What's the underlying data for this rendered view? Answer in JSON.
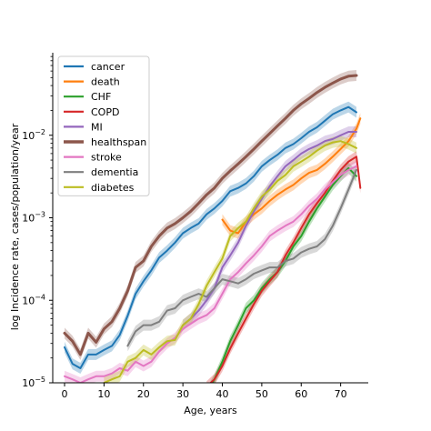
{
  "chart_data": {
    "type": "line",
    "xlabel": "Age, years",
    "ylabel": "log Incidence rate, cases/population/year",
    "xlim": [
      -3,
      77
    ],
    "ylim": [
      1e-05,
      0.1
    ],
    "yscale": "log",
    "x_ticks": [
      0,
      10,
      20,
      30,
      40,
      50,
      60,
      70
    ],
    "y_ticks": [
      {
        "value": 1e-05,
        "label_base": "10",
        "label_exp": "−5"
      },
      {
        "value": 0.0001,
        "label_base": "10",
        "label_exp": "−4"
      },
      {
        "value": 0.001,
        "label_base": "10",
        "label_exp": "−3"
      },
      {
        "value": 0.01,
        "label_base": "10",
        "label_exp": "−2"
      }
    ],
    "grid": false,
    "legend_position": "upper-left",
    "series": [
      {
        "name": "cancer",
        "color": "#1f77b4",
        "band": true,
        "x": [
          0,
          2,
          4,
          6,
          8,
          10,
          12,
          14,
          16,
          18,
          20,
          22,
          24,
          26,
          28,
          30,
          32,
          34,
          36,
          38,
          40,
          42,
          44,
          46,
          48,
          50,
          52,
          54,
          56,
          58,
          60,
          62,
          64,
          66,
          68,
          70,
          72,
          74
        ],
        "y": [
          2.7e-05,
          1.7e-05,
          1.5e-05,
          2.2e-05,
          2.2e-05,
          2.5e-05,
          2.8e-05,
          3.8e-05,
          6.5e-05,
          0.00012,
          0.00017,
          0.00023,
          0.00033,
          0.0004,
          0.0005,
          0.00065,
          0.00075,
          0.00085,
          0.0011,
          0.0013,
          0.0016,
          0.0021,
          0.0023,
          0.0026,
          0.0032,
          0.0042,
          0.005,
          0.0058,
          0.007,
          0.0078,
          0.0092,
          0.011,
          0.0125,
          0.015,
          0.018,
          0.02,
          0.022,
          0.019
        ]
      },
      {
        "name": "death",
        "color": "#ff7f0e",
        "band": true,
        "x": [
          40,
          42,
          44,
          46,
          48,
          50,
          52,
          54,
          56,
          58,
          60,
          62,
          64,
          66,
          68,
          70,
          72,
          74,
          75
        ],
        "y": [
          0.00095,
          0.0007,
          0.00065,
          0.0009,
          0.0011,
          0.0013,
          0.0016,
          0.0019,
          0.0022,
          0.0025,
          0.003,
          0.0035,
          0.0038,
          0.0045,
          0.0055,
          0.0068,
          0.0085,
          0.012,
          0.016
        ]
      },
      {
        "name": "CHF",
        "color": "#2ca02c",
        "band": true,
        "x": [
          37,
          38,
          40,
          42,
          44,
          46,
          48,
          50,
          52,
          54,
          56,
          58,
          60,
          62,
          64,
          66,
          68,
          70,
          72,
          74
        ],
        "y": [
          9e-06,
          1.1e-05,
          1.8e-05,
          3.2e-05,
          5e-05,
          8e-05,
          0.0001,
          0.00014,
          0.00018,
          0.00022,
          0.0003,
          0.00045,
          0.0006,
          0.0009,
          0.0013,
          0.0018,
          0.0025,
          0.0032,
          0.004,
          0.0032
        ]
      },
      {
        "name": "COPD",
        "color": "#d62728",
        "band": true,
        "x": [
          36,
          38,
          40,
          42,
          44,
          46,
          48,
          50,
          52,
          54,
          56,
          58,
          60,
          62,
          64,
          66,
          68,
          70,
          72,
          74,
          75
        ],
        "y": [
          9e-06,
          1.1e-05,
          1.6e-05,
          2.6e-05,
          4e-05,
          6e-05,
          9e-05,
          0.00013,
          0.00017,
          0.00022,
          0.00035,
          0.0005,
          0.00075,
          0.0011,
          0.0015,
          0.002,
          0.0028,
          0.0038,
          0.0048,
          0.0055,
          0.0023
        ]
      },
      {
        "name": "MI",
        "color": "#9467bd",
        "band": true,
        "x": [
          30,
          32,
          34,
          36,
          38,
          40,
          42,
          44,
          46,
          48,
          50,
          52,
          54,
          56,
          58,
          60,
          62,
          64,
          66,
          68,
          70,
          72,
          74
        ],
        "y": [
          5e-05,
          6e-05,
          7.5e-05,
          0.0001,
          0.00014,
          0.00025,
          0.00035,
          0.0005,
          0.0008,
          0.0012,
          0.0017,
          0.0024,
          0.0032,
          0.0042,
          0.005,
          0.006,
          0.0068,
          0.0075,
          0.0085,
          0.009,
          0.01,
          0.011,
          0.011
        ]
      },
      {
        "name": "healthspan",
        "color": "#8c564b",
        "band": true,
        "x": [
          0,
          2,
          4,
          6,
          8,
          10,
          12,
          14,
          16,
          18,
          20,
          22,
          24,
          26,
          28,
          30,
          32,
          34,
          36,
          38,
          40,
          42,
          44,
          46,
          48,
          50,
          52,
          54,
          56,
          58,
          60,
          62,
          64,
          66,
          68,
          70,
          72,
          74
        ],
        "y": [
          4e-05,
          3.2e-05,
          2.2e-05,
          4e-05,
          3.1e-05,
          4.5e-05,
          5.5e-05,
          8e-05,
          0.00013,
          0.00025,
          0.0003,
          0.00045,
          0.0006,
          0.00075,
          0.00085,
          0.001,
          0.0012,
          0.0015,
          0.0019,
          0.0023,
          0.003,
          0.0037,
          0.0045,
          0.0055,
          0.0068,
          0.0085,
          0.0105,
          0.013,
          0.016,
          0.02,
          0.024,
          0.028,
          0.033,
          0.038,
          0.043,
          0.048,
          0.052,
          0.053
        ]
      },
      {
        "name": "stroke",
        "color": "#e377c2",
        "band": true,
        "x": [
          0,
          2,
          4,
          6,
          8,
          10,
          12,
          14,
          16,
          18,
          20,
          22,
          24,
          26,
          28,
          30,
          32,
          34,
          36,
          38,
          40,
          42,
          44,
          46,
          48,
          50,
          52,
          54,
          56,
          58,
          60,
          62,
          64,
          66,
          68,
          70,
          72,
          74
        ],
        "y": [
          1.2e-05,
          1.1e-05,
          1e-05,
          1.1e-05,
          1.2e-05,
          1.2e-05,
          1.3e-05,
          1.5e-05,
          1.4e-05,
          1.8e-05,
          1.6e-05,
          1.8e-05,
          2.4e-05,
          3e-05,
          3.5e-05,
          4.5e-05,
          5.2e-05,
          6e-05,
          6.6e-05,
          8e-05,
          0.00012,
          0.00018,
          0.00022,
          0.00028,
          0.00035,
          0.00045,
          0.0006,
          0.0007,
          0.0008,
          0.0009,
          0.0011,
          0.0014,
          0.0017,
          0.0022,
          0.0027,
          0.0033,
          0.0038,
          0.0042
        ]
      },
      {
        "name": "dementia",
        "color": "#7f7f7f",
        "band": true,
        "x": [
          16,
          18,
          20,
          22,
          24,
          26,
          28,
          30,
          32,
          34,
          36,
          38,
          40,
          42,
          44,
          46,
          48,
          50,
          52,
          54,
          56,
          58,
          60,
          62,
          64,
          66,
          68,
          70,
          72,
          74
        ],
        "y": [
          2.8e-05,
          4.2e-05,
          5e-05,
          5e-05,
          5.5e-05,
          7.5e-05,
          8e-05,
          0.0001,
          0.00011,
          0.00012,
          0.00011,
          0.00014,
          0.00018,
          0.00017,
          0.00016,
          0.00018,
          0.00021,
          0.00023,
          0.00025,
          0.00025,
          0.0003,
          0.00032,
          0.00038,
          0.00042,
          0.00045,
          0.00055,
          0.0008,
          0.0013,
          0.0022,
          0.0038
        ]
      },
      {
        "name": "diabetes",
        "color": "#bcbd22",
        "band": true,
        "x": [
          10,
          12,
          14,
          16,
          18,
          20,
          22,
          24,
          26,
          28,
          30,
          32,
          34,
          36,
          38,
          40,
          42,
          44,
          46,
          48,
          50,
          52,
          54,
          56,
          58,
          60,
          62,
          64,
          66,
          68,
          70,
          72,
          74
        ],
        "y": [
          1e-05,
          1.1e-05,
          1.2e-05,
          1.8e-05,
          2e-05,
          2.5e-05,
          2.2e-05,
          2.7e-05,
          3.2e-05,
          3.3e-05,
          5e-05,
          6e-05,
          9e-05,
          0.00015,
          0.00022,
          0.00032,
          0.0006,
          0.00075,
          0.0009,
          0.0013,
          0.0018,
          0.0022,
          0.0028,
          0.0033,
          0.0042,
          0.0048,
          0.0055,
          0.0065,
          0.0075,
          0.0082,
          0.0085,
          0.0078,
          0.007
        ]
      }
    ]
  }
}
